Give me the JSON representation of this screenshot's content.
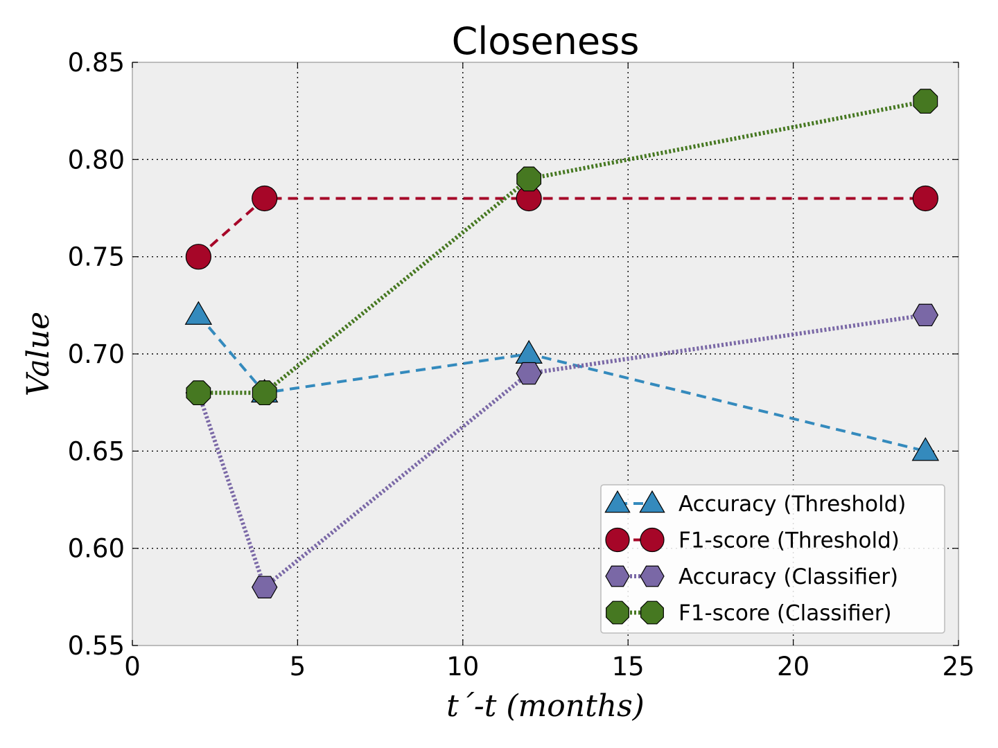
{
  "chart_data": {
    "type": "line",
    "title": "Closeness",
    "xlabel": "t´-t (months)",
    "ylabel": "Value",
    "xlim": [
      0,
      25
    ],
    "ylim": [
      0.55,
      0.85
    ],
    "xticks": [
      0,
      5,
      10,
      15,
      20,
      25
    ],
    "xtick_labels": [
      "0",
      "5",
      "10",
      "15",
      "20",
      "25"
    ],
    "yticks": [
      0.55,
      0.6,
      0.65,
      0.7,
      0.75,
      0.8,
      0.85
    ],
    "ytick_labels": [
      "0.55",
      "0.60",
      "0.65",
      "0.70",
      "0.75",
      "0.80",
      "0.85"
    ],
    "grid": true,
    "legend_position": "lower-right",
    "x": [
      2,
      4,
      12,
      24
    ],
    "series": [
      {
        "name": "Accuracy (Threshold)",
        "values": [
          0.72,
          0.68,
          0.7,
          0.65
        ],
        "color": "#348abd",
        "marker": "triangle",
        "linestyle": "dashed"
      },
      {
        "name": "F1-score (Threshold)",
        "values": [
          0.75,
          0.78,
          0.78,
          0.78
        ],
        "color": "#a60628",
        "marker": "circle",
        "linestyle": "dashed"
      },
      {
        "name": "Accuracy (Classifier)",
        "values": [
          0.68,
          0.58,
          0.69,
          0.72
        ],
        "color": "#7a68a6",
        "marker": "hexagon",
        "linestyle": "dotted"
      },
      {
        "name": "F1-score (Classifier)",
        "values": [
          0.68,
          0.68,
          0.79,
          0.83
        ],
        "color": "#467821",
        "marker": "octagon",
        "linestyle": "dotted"
      }
    ]
  }
}
